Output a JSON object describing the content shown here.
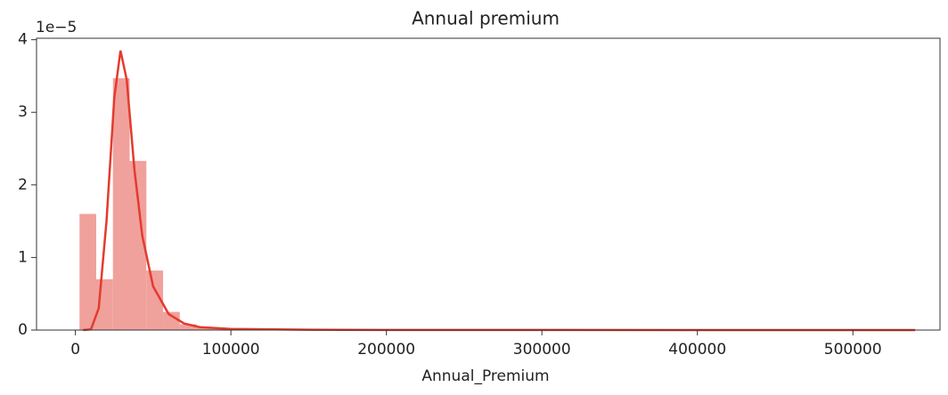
{
  "chart_data": {
    "type": "histogram",
    "title": "Annual premium",
    "x_label": "Annual_Premium",
    "y_offset_label": "1e−5",
    "bins": [
      2630,
      13381,
      24132,
      34883,
      45634,
      56385,
      67136,
      77887,
      88638,
      99389,
      110140,
      120891,
      131642,
      142393,
      153144,
      163895,
      174646,
      185397,
      196148,
      206899,
      217650,
      228401,
      239152,
      249903,
      260654,
      271405,
      282156,
      292907,
      303658,
      314409,
      325160,
      335911,
      346662,
      357413,
      368164,
      378915,
      389666,
      400417,
      411168,
      421919,
      432670,
      443421,
      454172,
      464923,
      475674,
      486425,
      497176,
      507927,
      518678,
      529429,
      540180
    ],
    "counts": [
      1.6,
      0.7,
      3.47,
      2.33,
      0.82,
      0.25,
      0.08,
      0.03,
      0.015,
      0.008,
      0.005,
      0.003,
      0.002,
      0.001,
      0.001,
      0,
      0,
      0,
      0,
      0,
      0,
      0,
      0,
      0,
      0,
      0,
      0,
      0,
      0,
      0,
      0,
      0,
      0,
      0,
      0,
      0,
      0,
      0,
      0,
      0,
      0,
      0,
      0,
      0,
      0,
      0,
      0,
      0,
      0,
      0.001
    ],
    "bar_color": "#f0a19c",
    "kde": {
      "color": "#e33b2e",
      "x": [
        5000,
        10000,
        15000,
        20000,
        25000,
        29000,
        33000,
        38000,
        43000,
        50000,
        60000,
        70000,
        80000,
        100000,
        150000,
        200000,
        300000,
        540000
      ],
      "y": [
        0,
        0.01,
        0.3,
        1.5,
        3.2,
        3.85,
        3.45,
        2.2,
        1.3,
        0.6,
        0.22,
        0.09,
        0.04,
        0.015,
        0.005,
        0.002,
        0.001,
        0
      ]
    },
    "xlim": [
      -25000,
      556000
    ],
    "ylim": [
      0,
      4.02
    ],
    "xticks": [
      0,
      100000,
      200000,
      300000,
      400000,
      500000
    ],
    "yticks": [
      0,
      1,
      2,
      3,
      4
    ]
  }
}
